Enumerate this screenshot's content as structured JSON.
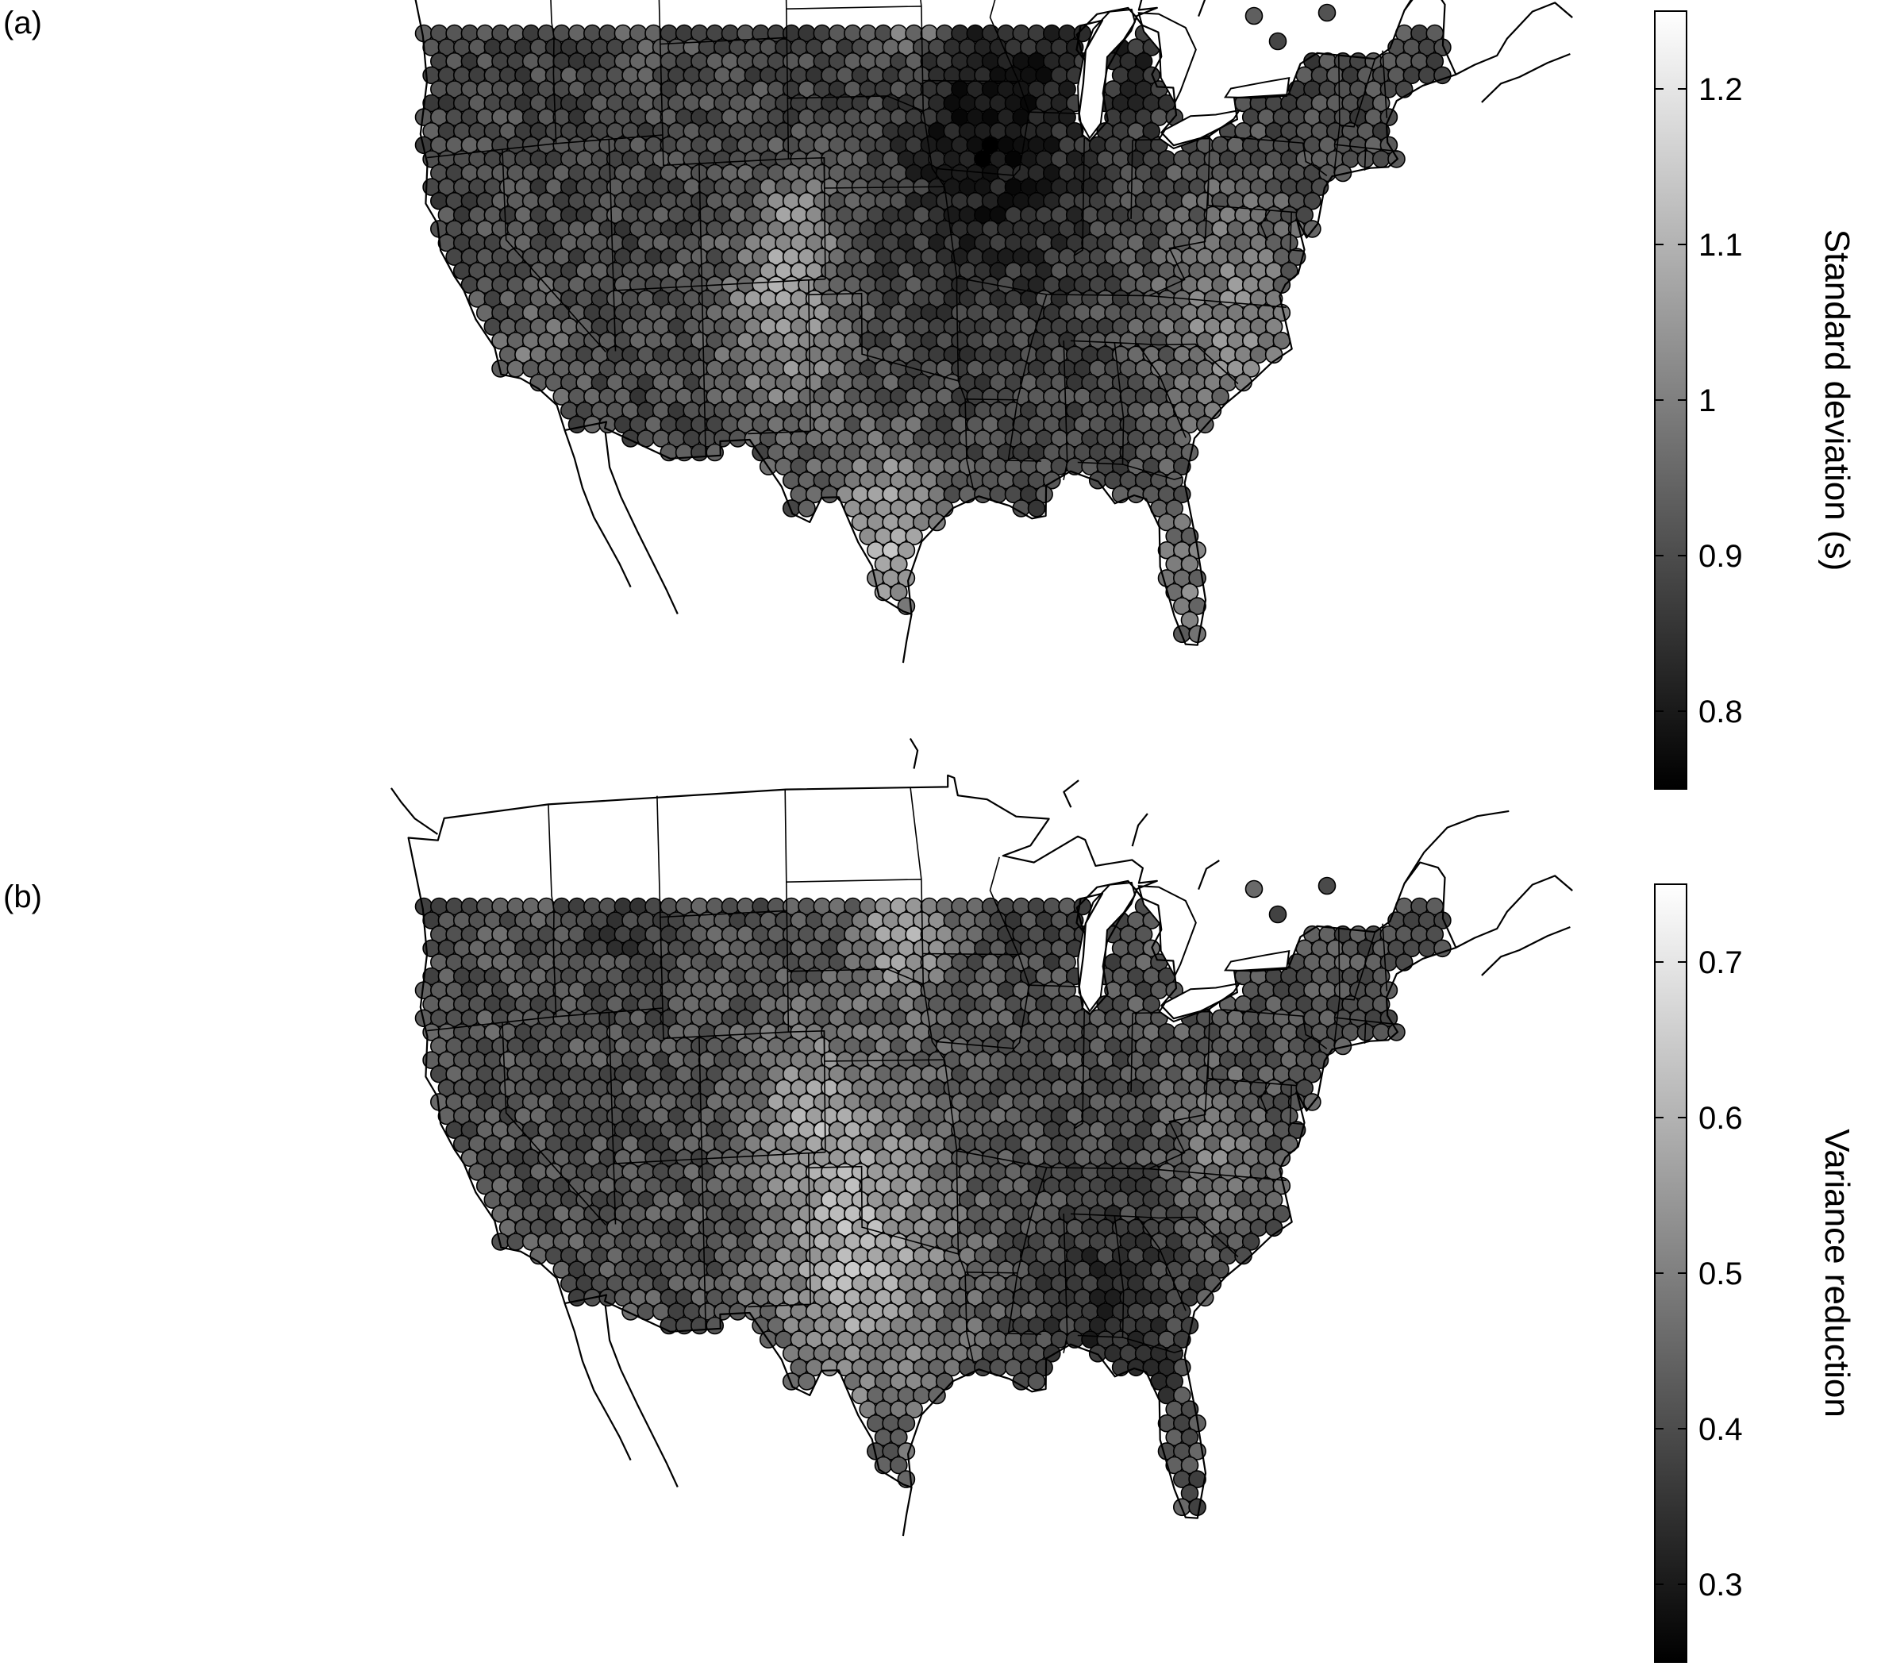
{
  "panels": [
    {
      "id": "a",
      "label": "(a)",
      "colorbar": {
        "title": "Standard deviation (s)",
        "min": 0.75,
        "max": 1.25,
        "ticks": [
          {
            "value": 0.8,
            "label": "0.8"
          },
          {
            "value": 0.9,
            "label": "0.9"
          },
          {
            "value": 1.0,
            "label": "1"
          },
          {
            "value": 1.1,
            "label": "1.1"
          },
          {
            "value": 1.2,
            "label": "1.2"
          }
        ],
        "colormap": "grayscale (black = low, white = high)"
      },
      "pattern": {
        "base": 0.9,
        "noise": 0.05,
        "features": [
          {
            "lon": -92.5,
            "lat": 42.0,
            "sd": 3.5,
            "amp": -0.12
          },
          {
            "lon": -98.5,
            "lat": 28.5,
            "sd": 2.2,
            "amp": 0.2
          },
          {
            "lon": -104.5,
            "lat": 35.5,
            "sd": 2.5,
            "amp": 0.14
          },
          {
            "lon": -103.5,
            "lat": 38.5,
            "sd": 1.5,
            "amp": 0.1
          },
          {
            "lon": -97.0,
            "lat": 46.5,
            "sd": 1.4,
            "amp": 0.2
          },
          {
            "lon": -79.0,
            "lat": 36.0,
            "sd": 3.0,
            "amp": 0.12
          },
          {
            "lon": -81.5,
            "lat": 27.0,
            "sd": 1.8,
            "amp": 0.1
          },
          {
            "lon": -112.0,
            "lat": 48.0,
            "sd": 1.6,
            "amp": 0.1
          },
          {
            "lon": -119.0,
            "lat": 35.0,
            "sd": 2.0,
            "amp": 0.07
          },
          {
            "lon": -84.0,
            "lat": 45.0,
            "sd": 2.2,
            "amp": -0.05
          }
        ]
      }
    },
    {
      "id": "b",
      "label": "(b)",
      "colorbar": {
        "title": "Variance reduction",
        "min": 0.25,
        "max": 0.75,
        "ticks": [
          {
            "value": 0.3,
            "label": "0.3"
          },
          {
            "value": 0.4,
            "label": "0.4"
          },
          {
            "value": 0.5,
            "label": "0.5"
          },
          {
            "value": 0.6,
            "label": "0.6"
          },
          {
            "value": 0.7,
            "label": "0.7"
          }
        ],
        "colormap": "grayscale (black = low, white = high)"
      },
      "pattern": {
        "base": 0.42,
        "noise": 0.05,
        "features": [
          {
            "lon": -100.0,
            "lat": 33.5,
            "sd": 3.5,
            "amp": 0.18
          },
          {
            "lon": -97.5,
            "lat": 44.5,
            "sd": 1.8,
            "amp": 0.16
          },
          {
            "lon": -103.0,
            "lat": 38.5,
            "sd": 2.0,
            "amp": 0.12
          },
          {
            "lon": -80.0,
            "lat": 37.5,
            "sd": 1.8,
            "amp": 0.08
          },
          {
            "lon": -85.5,
            "lat": 31.5,
            "sd": 3.2,
            "amp": -0.08
          },
          {
            "lon": -112.5,
            "lat": 46.0,
            "sd": 2.0,
            "amp": -0.06
          },
          {
            "lon": -90.0,
            "lat": 47.0,
            "sd": 2.5,
            "amp": -0.05
          }
        ]
      }
    }
  ]
}
